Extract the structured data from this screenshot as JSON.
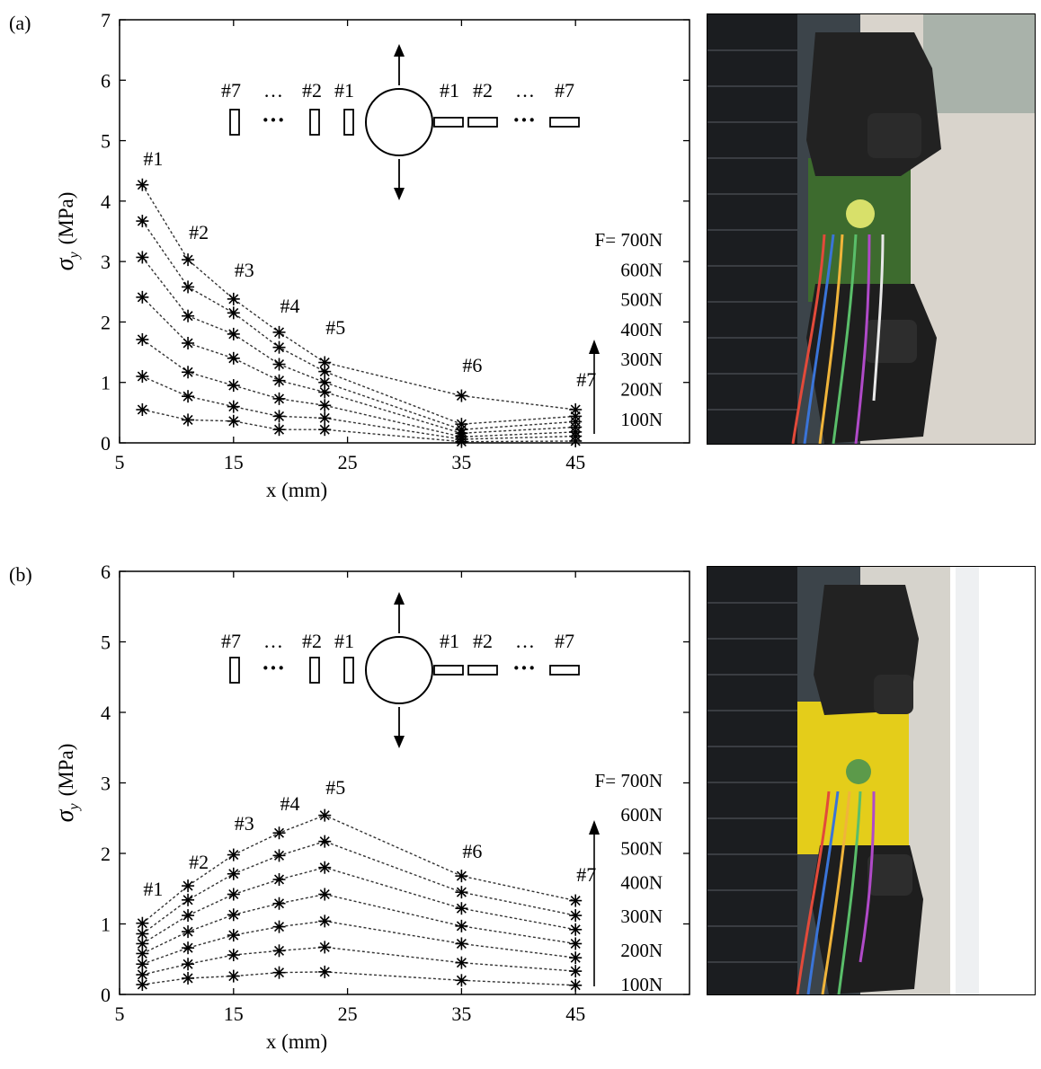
{
  "chart_data": [
    {
      "type": "line",
      "panel_label": "(a)",
      "xlabel": "x (mm)",
      "ylabel_symbol": "σ",
      "ylabel_subscript": "y",
      "ylabel_unit": "(MPa)",
      "xlim": [
        5,
        55
      ],
      "ylim": [
        0,
        7
      ],
      "xticks": [
        5,
        15,
        25,
        35,
        45
      ],
      "yticks": [
        0,
        1,
        2,
        3,
        4,
        5,
        6,
        7
      ],
      "x": [
        7,
        11,
        15,
        19,
        23,
        35,
        45
      ],
      "point_labels": [
        "#1",
        "#2",
        "#3",
        "#4",
        "#5",
        "#6",
        "#7"
      ],
      "load_labels": [
        "F= 700N",
        "600N",
        "500N",
        "400N",
        "300N",
        "200N",
        "100N"
      ],
      "series": [
        {
          "values": [
            0.55,
            0.38,
            0.36,
            0.22,
            0.22,
            0.02,
            0.03
          ]
        },
        {
          "values": [
            1.1,
            0.77,
            0.6,
            0.44,
            0.41,
            0.06,
            0.11
          ]
        },
        {
          "values": [
            1.71,
            1.17,
            0.95,
            0.73,
            0.62,
            0.1,
            0.18
          ]
        },
        {
          "values": [
            2.41,
            1.65,
            1.4,
            1.03,
            0.84,
            0.16,
            0.26
          ]
        },
        {
          "values": [
            3.07,
            2.1,
            1.8,
            1.3,
            1.0,
            0.22,
            0.35
          ]
        },
        {
          "values": [
            3.67,
            2.58,
            2.15,
            1.58,
            1.18,
            0.31,
            0.44
          ]
        },
        {
          "values": [
            4.27,
            3.03,
            2.38,
            1.83,
            1.33,
            0.78,
            0.55
          ]
        }
      ],
      "diagram": {
        "left_labels": [
          "#7",
          "…",
          "#2",
          "#1"
        ],
        "right_labels": [
          "#1",
          "#2",
          "…",
          "#7"
        ],
        "dots": "···"
      }
    },
    {
      "type": "line",
      "panel_label": "(b)",
      "xlabel": "x (mm)",
      "ylabel_symbol": "σ",
      "ylabel_subscript": "y",
      "ylabel_unit": "(MPa)",
      "xlim": [
        5,
        55
      ],
      "ylim": [
        0,
        6
      ],
      "xticks": [
        5,
        15,
        25,
        35,
        45
      ],
      "yticks": [
        0,
        1,
        2,
        3,
        4,
        5,
        6
      ],
      "x": [
        7,
        11,
        15,
        19,
        23,
        35,
        45
      ],
      "point_labels": [
        "#1",
        "#2",
        "#3",
        "#4",
        "#5",
        "#6",
        "#7"
      ],
      "load_labels": [
        "F= 700N",
        "600N",
        "500N",
        "400N",
        "300N",
        "200N",
        "100N"
      ],
      "series": [
        {
          "values": [
            0.14,
            0.23,
            0.26,
            0.31,
            0.32,
            0.2,
            0.13
          ]
        },
        {
          "values": [
            0.28,
            0.43,
            0.56,
            0.62,
            0.67,
            0.45,
            0.33
          ]
        },
        {
          "values": [
            0.43,
            0.66,
            0.84,
            0.96,
            1.04,
            0.72,
            0.52
          ]
        },
        {
          "values": [
            0.58,
            0.89,
            1.13,
            1.29,
            1.42,
            0.97,
            0.72
          ]
        },
        {
          "values": [
            0.72,
            1.12,
            1.42,
            1.63,
            1.8,
            1.22,
            0.92
          ]
        },
        {
          "values": [
            0.86,
            1.34,
            1.71,
            1.97,
            2.17,
            1.45,
            1.12
          ]
        },
        {
          "values": [
            1.01,
            1.54,
            1.98,
            2.29,
            2.54,
            1.68,
            1.33
          ]
        }
      ],
      "diagram": {
        "left_labels": [
          "#7",
          "…",
          "#2",
          "#1"
        ],
        "right_labels": [
          "#1",
          "#2",
          "…",
          "#7"
        ],
        "dots": "···"
      }
    }
  ]
}
